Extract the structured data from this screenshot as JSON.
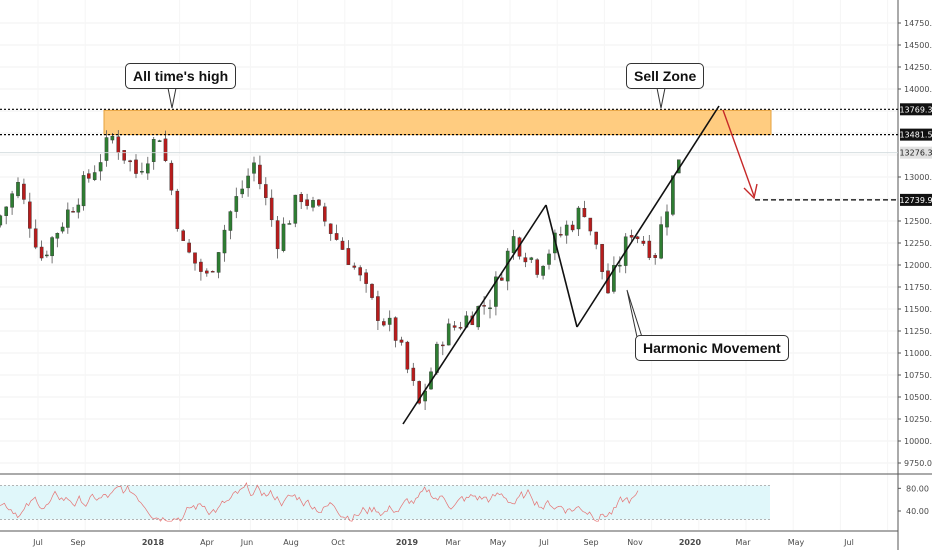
{
  "chart_data": [
    {
      "type": "candlestick",
      "x_axis_labels": [
        "Jul",
        "Sep",
        "2018",
        "Apr",
        "Jun",
        "Aug",
        "Oct",
        "2019",
        "Mar",
        "May",
        "Jul",
        "Sep",
        "Nov",
        "2020",
        "Mar",
        "May",
        "Jul"
      ],
      "y_ticks": [
        "14750.0",
        "14500.0",
        "14250.0",
        "14000.0",
        "13750.0",
        "13500.0",
        "13250.0",
        "13000.0",
        "12750.0",
        "12500.0",
        "12250.0",
        "12000.0",
        "11750.0",
        "11500.0",
        "11250.0",
        "11000.0",
        "10750.0",
        "10500.0",
        "10250.0",
        "10000.0",
        "9750.0"
      ],
      "ylim": [
        9650,
        14850
      ],
      "key_points": [
        {
          "date": "2017-06",
          "price": 12450
        },
        {
          "date": "2017-07",
          "price": 12900
        },
        {
          "date": "2017-08",
          "price": 12100
        },
        {
          "date": "2017-10",
          "price": 13000
        },
        {
          "date": "2017-11",
          "price": 13450
        },
        {
          "date": "2017-12",
          "price": 13050
        },
        {
          "date": "2018-01",
          "price": 13500
        },
        {
          "date": "2018-02",
          "price": 12200
        },
        {
          "date": "2018-03",
          "price": 11850
        },
        {
          "date": "2018-04",
          "price": 12600
        },
        {
          "date": "2018-05",
          "price": 13150
        },
        {
          "date": "2018-06",
          "price": 12300
        },
        {
          "date": "2018-07",
          "price": 12800
        },
        {
          "date": "2018-08",
          "price": 12500
        },
        {
          "date": "2018-09",
          "price": 12100
        },
        {
          "date": "2018-10",
          "price": 11550
        },
        {
          "date": "2018-11",
          "price": 11200
        },
        {
          "date": "2018-12",
          "price": 10400
        },
        {
          "date": "2019-01",
          "price": 11200
        },
        {
          "date": "2019-02",
          "price": 11400
        },
        {
          "date": "2019-03",
          "price": 11600
        },
        {
          "date": "2019-04",
          "price": 12300
        },
        {
          "date": "2019-05",
          "price": 12000
        },
        {
          "date": "2019-06",
          "price": 12350
        },
        {
          "date": "2019-07",
          "price": 12650
        },
        {
          "date": "2019-08",
          "price": 11700
        },
        {
          "date": "2019-09",
          "price": 12400
        },
        {
          "date": "2019-10",
          "price": 12150
        },
        {
          "date": "2019-11",
          "price": 13250
        }
      ],
      "levels": [
        {
          "label": "13769.3",
          "value": 13769.3,
          "style": "dotted",
          "color": "#000000"
        },
        {
          "label": "13481.5",
          "value": 13481.5,
          "style": "dotted",
          "color": "#000000"
        },
        {
          "label": "13276.3",
          "value": 13276.3,
          "style": "solid",
          "color": "#cfd8dc"
        },
        {
          "label": "12739.9",
          "value": 12739.9,
          "style": "dashed",
          "color": "#000000"
        }
      ],
      "zone": {
        "price_low": 13481.5,
        "price_high": 13769.3,
        "color": "#ffcc80"
      },
      "annotations": [
        {
          "text": "All time's high",
          "anchor_date": "2018-01",
          "anchor_price": 13481.5
        },
        {
          "text": "Sell Zone",
          "anchor_date": "2019-12",
          "anchor_price": 13481.5
        },
        {
          "text": "Harmonic Movement",
          "anchor_date": "2019-10",
          "anchor_price": 11950
        }
      ],
      "pattern_lines": [
        [
          {
            "date": "2018-12",
            "price": 10200
          },
          {
            "date": "2019-07",
            "price": 12700
          }
        ],
        [
          {
            "date": "2019-07",
            "price": 12700
          },
          {
            "date": "2019-08",
            "price": 11250
          }
        ],
        [
          {
            "date": "2019-08",
            "price": 11250
          },
          {
            "date": "2020-02",
            "price": 13769
          }
        ]
      ],
      "projection_arrow": [
        {
          "date": "2020-02",
          "price": 13769
        },
        {
          "date": "2020-03",
          "price": 12739.9
        }
      ]
    },
    {
      "type": "line",
      "indicator": "oscillator",
      "y_ticks": [
        "80.00",
        "40.00"
      ],
      "ylim": [
        10,
        100
      ],
      "band": [
        30,
        70
      ]
    }
  ]
}
